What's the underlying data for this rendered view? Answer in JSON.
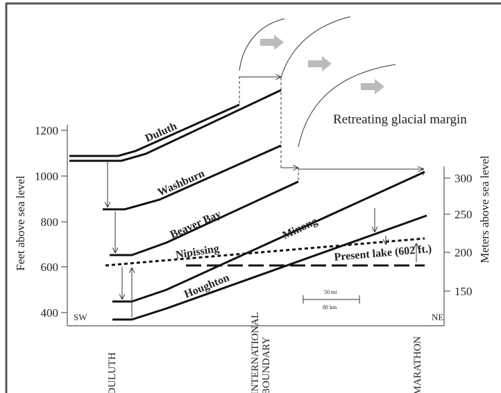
{
  "left_axis": {
    "label": "Feet above sea level",
    "ticks": [
      "1200",
      "1000",
      "800",
      "600",
      "400"
    ]
  },
  "right_axis": {
    "label": "Meters above sea level",
    "ticks": [
      "300",
      "250",
      "200",
      "150"
    ]
  },
  "shorelines": [
    "Duluth",
    "Washburn",
    "Beaver Bay",
    "Nipissing",
    "Minong",
    "Houghton",
    "Present lake (602 ft.)"
  ],
  "annotation": "Retreating glacial margin",
  "directions": {
    "left": "SW",
    "right": "NE"
  },
  "places": [
    "DULUTH",
    "INTERNATIONAL",
    "BOUNDARY",
    "MARATHON"
  ],
  "scale": {
    "miles": "50 mi",
    "km": "80 km"
  }
}
